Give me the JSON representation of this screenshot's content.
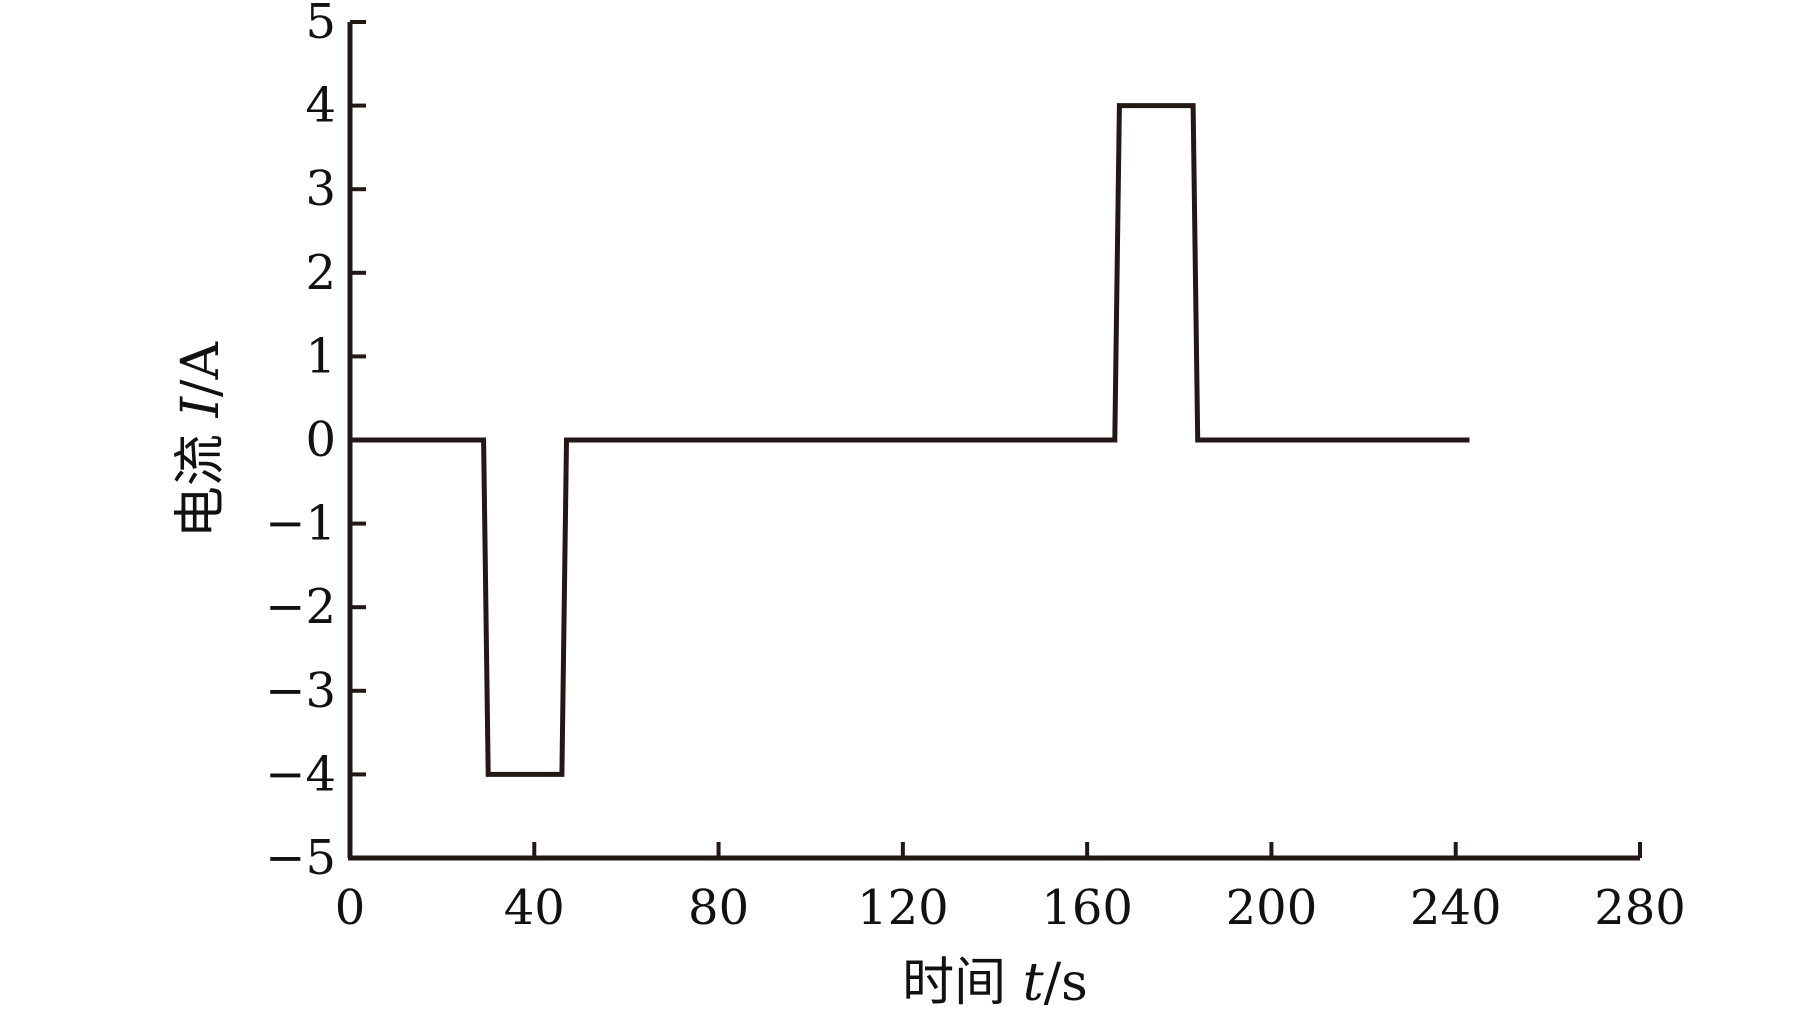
{
  "chart_data": {
    "type": "line",
    "title": "",
    "xlabel_prefix": "时间",
    "xlabel_symbol": "t",
    "xlabel_unit": "/s",
    "ylabel_prefix": "电流",
    "ylabel_symbol": "I",
    "ylabel_unit": "/A",
    "xlim": [
      0,
      280
    ],
    "ylim": [
      -5,
      5
    ],
    "x_ticks": [
      0,
      40,
      80,
      120,
      160,
      200,
      240,
      280
    ],
    "y_ticks": [
      5,
      4,
      3,
      2,
      1,
      0,
      -1,
      -2,
      -3,
      -4,
      -5
    ],
    "x_tick_labels": [
      "0",
      "40",
      "80",
      "120",
      "160",
      "200",
      "240",
      "280"
    ],
    "y_tick_labels": [
      "5",
      "4",
      "3",
      "2",
      "1",
      "0",
      "−1",
      "−2",
      "−3",
      "−4",
      "−5"
    ],
    "grid": false,
    "series": [
      {
        "x": [
          0,
          29,
          30,
          46,
          47,
          166,
          167,
          183,
          184,
          243
        ],
        "y": [
          0,
          0,
          -4,
          -4,
          0,
          0,
          4,
          4,
          0,
          0
        ]
      }
    ],
    "line_color": "#231815"
  }
}
